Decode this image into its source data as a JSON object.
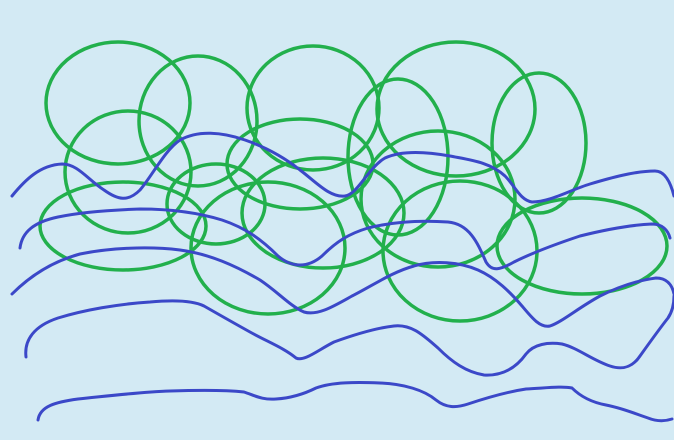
{
  "colors": {
    "background": "#d3eaf4",
    "circle_stroke": "#22b04c",
    "line_stroke": "#3b48c8"
  },
  "circle_count": 18,
  "line_count": 5
}
